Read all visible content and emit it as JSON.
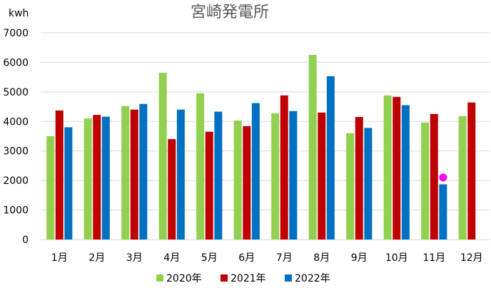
{
  "chart_data": {
    "type": "bar",
    "title": "宮崎発電所",
    "unit_label": "kwh",
    "categories": [
      "1月",
      "2月",
      "3月",
      "4月",
      "5月",
      "6月",
      "7月",
      "8月",
      "9月",
      "10月",
      "11月",
      "12月"
    ],
    "series": [
      {
        "name": "2020年",
        "color": "#92d050",
        "values": [
          3500,
          4100,
          4520,
          5650,
          4950,
          4030,
          4270,
          6250,
          3600,
          4880,
          3960,
          4180
        ]
      },
      {
        "name": "2021年",
        "color": "#c00000",
        "values": [
          4370,
          4220,
          4400,
          3400,
          3650,
          3840,
          4880,
          4300,
          4150,
          4830,
          4250,
          4640
        ]
      },
      {
        "name": "2022年",
        "color": "#0070c0",
        "values": [
          3800,
          4160,
          4590,
          4400,
          4330,
          4620,
          4350,
          5530,
          3780,
          4550,
          1870,
          null
        ]
      }
    ],
    "highlight_point": {
      "category": "11月",
      "value": 2100,
      "color": "#ff00ff"
    },
    "ylim": [
      0,
      7000
    ],
    "yticks": [
      0,
      1000,
      2000,
      3000,
      4000,
      5000,
      6000,
      7000
    ],
    "grid": true,
    "legend_position": "bottom"
  }
}
